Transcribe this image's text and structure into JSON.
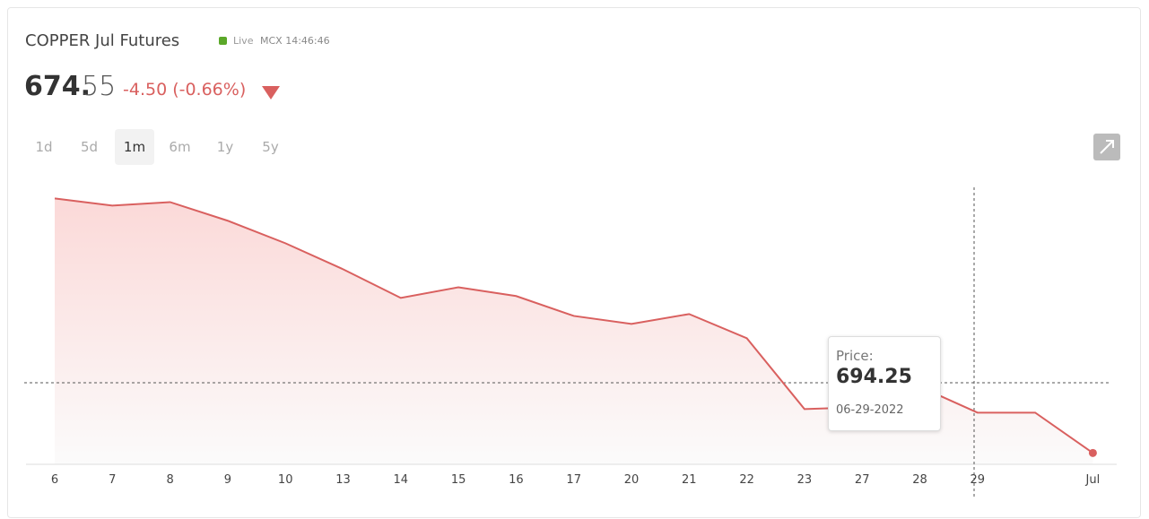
{
  "header": {
    "title": "COPPER Jul Futures",
    "live": "Live",
    "exchange_time": "MCX 14:46:46",
    "price_int": "674.",
    "price_dec": "55",
    "change": "-4.50 (-0.66%)"
  },
  "range_tabs": [
    "1d",
    "5d",
    "1m",
    "6m",
    "1y",
    "5y"
  ],
  "tooltip": {
    "label": "Price:",
    "value": "694.25",
    "date": "06-29-2022"
  },
  "chart_data": {
    "type": "area",
    "categories": [
      "6",
      "7",
      "8",
      "9",
      "10",
      "13",
      "14",
      "15",
      "16",
      "17",
      "20",
      "21",
      "22",
      "23",
      "27",
      "28",
      "29",
      null,
      "Jul"
    ],
    "series": [
      {
        "name": "Price",
        "color": "#d9605f",
        "values": [
          798.9,
          795.4,
          797.1,
          788.0,
          777.0,
          764.3,
          750.3,
          755.5,
          751.2,
          741.5,
          737.6,
          742.4,
          730.6,
          696.0,
          696.9,
          706.9,
          694.25,
          694.25,
          674.55
        ]
      }
    ],
    "ylim": [
      669,
      810
    ]
  }
}
